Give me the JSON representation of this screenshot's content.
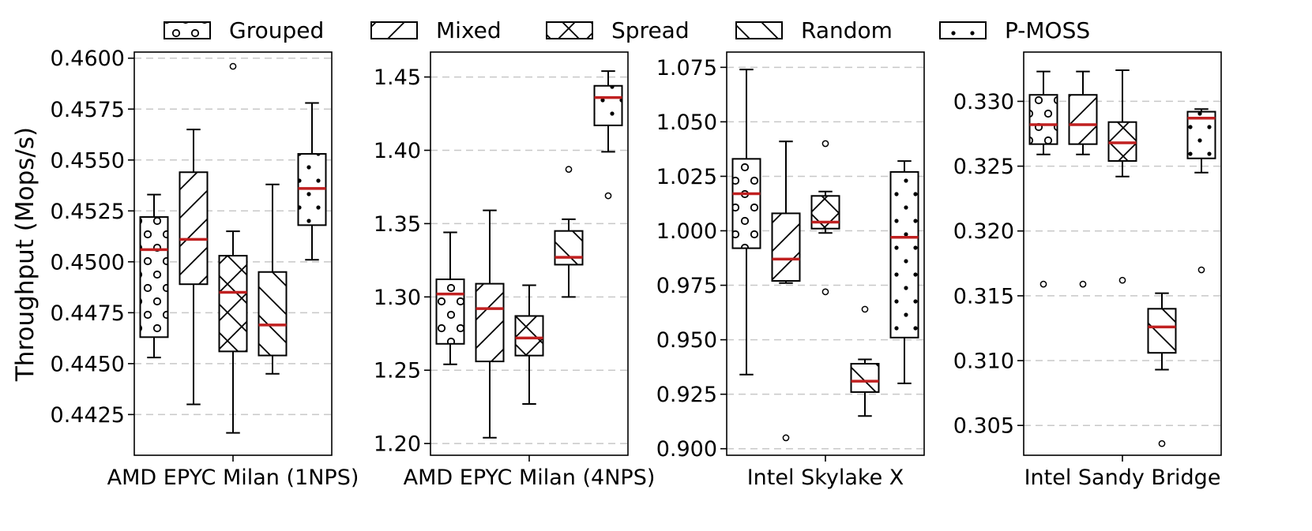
{
  "chart_data": {
    "type": "boxplot",
    "ylabel": "Throughput (Mops/s)",
    "legend": [
      {
        "name": "Grouped",
        "hatch": "circles"
      },
      {
        "name": "Mixed",
        "hatch": "forward-diagonal"
      },
      {
        "name": "Spread",
        "hatch": "cross-diagonal"
      },
      {
        "name": "Random",
        "hatch": "back-diagonal"
      },
      {
        "name": "P-MOSS",
        "hatch": "dots"
      }
    ],
    "median_color": "#c02020",
    "grid": "horizontal-dashed",
    "panels": [
      {
        "category": "AMD EPYC Milan (1NPS)",
        "ylim": [
          0.4405,
          0.4603
        ],
        "yticks": [
          0.4425,
          0.445,
          0.4475,
          0.45,
          0.4525,
          0.455,
          0.4575,
          0.46
        ],
        "ytick_labels": [
          "0.4425",
          "0.4450",
          "0.4475",
          "0.4500",
          "0.4525",
          "0.4550",
          "0.4575",
          "0.4600"
        ],
        "boxes": [
          {
            "series": "Grouped",
            "whislo": 0.4453,
            "q1": 0.4463,
            "med": 0.4506,
            "q3": 0.4522,
            "whishi": 0.4533,
            "fliers": []
          },
          {
            "series": "Mixed",
            "whislo": 0.443,
            "q1": 0.4489,
            "med": 0.4511,
            "q3": 0.4544,
            "whishi": 0.4565,
            "fliers": []
          },
          {
            "series": "Spread",
            "whislo": 0.4416,
            "q1": 0.4456,
            "med": 0.4485,
            "q3": 0.4503,
            "whishi": 0.4515,
            "fliers": [
              0.4596
            ]
          },
          {
            "series": "Random",
            "whislo": 0.4445,
            "q1": 0.4454,
            "med": 0.4469,
            "q3": 0.4495,
            "whishi": 0.4538,
            "fliers": []
          },
          {
            "series": "P-MOSS",
            "whislo": 0.4501,
            "q1": 0.4518,
            "med": 0.4536,
            "q3": 0.4553,
            "whishi": 0.4578,
            "fliers": []
          }
        ]
      },
      {
        "category": "AMD EPYC Milan (4NPS)",
        "ylim": [
          1.192,
          1.467
        ],
        "yticks": [
          1.2,
          1.25,
          1.3,
          1.35,
          1.4,
          1.45
        ],
        "ytick_labels": [
          "1.20",
          "1.25",
          "1.30",
          "1.35",
          "1.40",
          "1.45"
        ],
        "boxes": [
          {
            "series": "Grouped",
            "whislo": 1.254,
            "q1": 1.268,
            "med": 1.302,
            "q3": 1.312,
            "whishi": 1.344,
            "fliers": []
          },
          {
            "series": "Mixed",
            "whislo": 1.204,
            "q1": 1.256,
            "med": 1.292,
            "q3": 1.309,
            "whishi": 1.359,
            "fliers": []
          },
          {
            "series": "Spread",
            "whislo": 1.227,
            "q1": 1.26,
            "med": 1.272,
            "q3": 1.287,
            "whishi": 1.308,
            "fliers": []
          },
          {
            "series": "Random",
            "whislo": 1.3,
            "q1": 1.322,
            "med": 1.327,
            "q3": 1.345,
            "whishi": 1.353,
            "fliers": [
              1.387
            ]
          },
          {
            "series": "P-MOSS",
            "whislo": 1.399,
            "q1": 1.417,
            "med": 1.436,
            "q3": 1.444,
            "whishi": 1.454,
            "fliers": [
              1.369
            ]
          }
        ]
      },
      {
        "category": "Intel Skylake X",
        "ylim": [
          0.897,
          1.082
        ],
        "yticks": [
          0.9,
          0.925,
          0.95,
          0.975,
          1.0,
          1.025,
          1.05,
          1.075
        ],
        "ytick_labels": [
          "0.900",
          "0.925",
          "0.950",
          "0.975",
          "1.000",
          "1.025",
          "1.050",
          "1.075"
        ],
        "boxes": [
          {
            "series": "Grouped",
            "whislo": 0.934,
            "q1": 0.992,
            "med": 1.017,
            "q3": 1.033,
            "whishi": 1.074,
            "fliers": []
          },
          {
            "series": "Mixed",
            "whislo": 0.976,
            "q1": 0.977,
            "med": 0.987,
            "q3": 1.008,
            "whishi": 1.041,
            "fliers": [
              0.905
            ]
          },
          {
            "series": "Spread",
            "whislo": 0.999,
            "q1": 1.001,
            "med": 1.004,
            "q3": 1.016,
            "whishi": 1.018,
            "fliers": [
              1.04,
              0.972
            ]
          },
          {
            "series": "Random",
            "whislo": 0.915,
            "q1": 0.926,
            "med": 0.931,
            "q3": 0.939,
            "whishi": 0.941,
            "fliers": [
              0.964
            ]
          },
          {
            "series": "P-MOSS",
            "whislo": 0.93,
            "q1": 0.951,
            "med": 0.997,
            "q3": 1.027,
            "whishi": 1.032,
            "fliers": []
          }
        ]
      },
      {
        "category": "Intel Sandy Bridge",
        "ylim": [
          0.3027,
          0.3338
        ],
        "yticks": [
          0.305,
          0.31,
          0.315,
          0.32,
          0.325,
          0.33
        ],
        "ytick_labels": [
          "0.305",
          "0.310",
          "0.315",
          "0.320",
          "0.325",
          "0.330"
        ],
        "boxes": [
          {
            "series": "Grouped",
            "whislo": 0.3259,
            "q1": 0.3267,
            "med": 0.3282,
            "q3": 0.3305,
            "whishi": 0.3323,
            "fliers": [
              0.3159
            ]
          },
          {
            "series": "Mixed",
            "whislo": 0.3259,
            "q1": 0.3267,
            "med": 0.3282,
            "q3": 0.3305,
            "whishi": 0.3323,
            "fliers": [
              0.3159
            ]
          },
          {
            "series": "Spread",
            "whislo": 0.3242,
            "q1": 0.3254,
            "med": 0.3268,
            "q3": 0.3284,
            "whishi": 0.3324,
            "fliers": [
              0.3162
            ]
          },
          {
            "series": "Random",
            "whislo": 0.3093,
            "q1": 0.3106,
            "med": 0.3126,
            "q3": 0.314,
            "whishi": 0.3152,
            "fliers": [
              0.3036
            ]
          },
          {
            "series": "P-MOSS",
            "whislo": 0.3245,
            "q1": 0.3256,
            "med": 0.3287,
            "q3": 0.3292,
            "whishi": 0.3294,
            "fliers": [
              0.317
            ]
          }
        ]
      }
    ]
  }
}
